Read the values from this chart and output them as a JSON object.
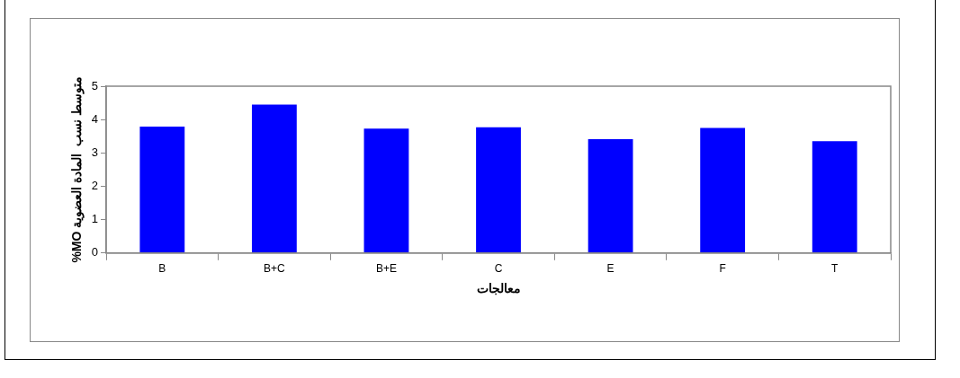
{
  "chart_data": {
    "type": "bar",
    "xlabel": "معالجات",
    "ylabel": "%MO متوسط نسب  المادة العضوية",
    "categories": [
      "B",
      "B+C",
      "B+E",
      "C",
      "E",
      "F",
      "T"
    ],
    "values": [
      3.79,
      4.45,
      3.73,
      3.77,
      3.41,
      3.75,
      3.35
    ],
    "color": "#0000ff",
    "ylim": [
      0,
      5
    ],
    "yticks": [
      0,
      1,
      2,
      3,
      4,
      5
    ],
    "grid": false,
    "legend": false
  }
}
